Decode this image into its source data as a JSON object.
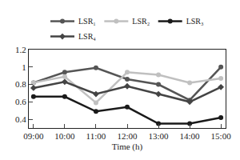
{
  "chart_data": {
    "type": "line",
    "x_label": "Time (h)",
    "categories": [
      "09:00",
      "10:00",
      "11:00",
      "12:00",
      "13:00",
      "14:00",
      "15:00"
    ],
    "series": [
      {
        "name": "LSR₁",
        "color": "#555555",
        "marker": "circle",
        "values": [
          0.82,
          0.94,
          0.99,
          0.86,
          0.8,
          0.62,
          1.0
        ]
      },
      {
        "name": "LSR₂",
        "color": "#c0c0c0",
        "marker": "circle",
        "values": [
          0.82,
          0.89,
          0.59,
          0.94,
          0.91,
          0.82,
          0.87
        ]
      },
      {
        "name": "LSR₃",
        "color": "#1a1a1a",
        "marker": "circle",
        "values": [
          0.66,
          0.66,
          0.49,
          0.54,
          0.35,
          0.35,
          0.42
        ]
      },
      {
        "name": "LSR₄",
        "color": "#444444",
        "marker": "diamond",
        "values": [
          0.76,
          0.83,
          0.69,
          0.78,
          0.69,
          0.6,
          0.77
        ]
      }
    ],
    "ylim": [
      0.3,
      1.2
    ],
    "yticks": [
      0.4,
      0.6,
      0.8,
      1,
      1.2
    ],
    "grid": false,
    "legend": "top"
  }
}
